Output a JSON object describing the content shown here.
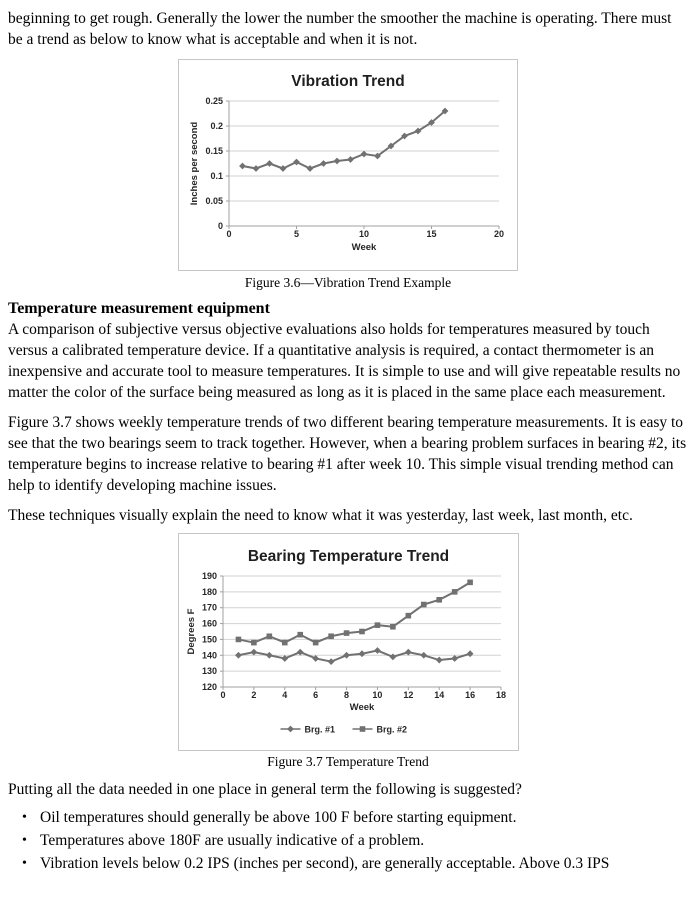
{
  "page": {
    "intro_paragraph": "beginning to get rough. Generally the lower the number the smoother the machine is operating. There must be a trend as below to know what is acceptable and when it is not.",
    "figure1_caption": "Figure 3.6—Vibration Trend Example",
    "section_heading": "Temperature measurement equipment",
    "para_temperature": "A comparison of subjective versus objective evaluations also holds for temperatures measured by touch versus a calibrated temperature device. If a quantitative analysis is required, a contact thermometer is an inexpensive and accurate tool to measure temperatures. It is simple to use and will give repeatable results no matter the color of the surface being measured as long as it is placed in the same place each measurement.",
    "para_figure37": "Figure 3.7 shows weekly temperature trends of two different bearing temperature measurements. It is easy to see that the two bearings seem to track together. However, when a bearing problem surfaces in bearing #2, its temperature begins to increase relative to bearing #1 after week 10. This simple visual trending method can help to identify developing machine issues.",
    "para_techniques": "These techniques visually explain the need to know what it was yesterday, last week, last month, etc.",
    "figure2_caption": "Figure 3.7 Temperature Trend",
    "para_suggested": "Putting all the data needed in one place in general term the following is suggested?",
    "bullets": [
      "Oil temperatures should generally be above 100 F before starting equipment.",
      "Temperatures above 180F are usually indicative of a problem.",
      "Vibration levels below 0.2 IPS (inches per second), are generally acceptable. Above 0.3 IPS"
    ]
  },
  "chart_data": [
    {
      "type": "line",
      "title": "Vibration Trend",
      "xlabel": "Week",
      "ylabel": "Inches per second",
      "xlim": [
        0,
        20
      ],
      "ylim": [
        0,
        0.25
      ],
      "xticks": [
        0,
        5,
        10,
        15,
        20
      ],
      "yticks": [
        0,
        0.05,
        0.1,
        0.15,
        0.2,
        0.25
      ],
      "ytick_labels": [
        "0",
        "0.05",
        "0.1",
        "0.15",
        "0.2",
        "0.25"
      ],
      "grid": true,
      "legend": false,
      "x": [
        1,
        2,
        3,
        4,
        5,
        6,
        7,
        8,
        9,
        10,
        11,
        12,
        13,
        14,
        15,
        16
      ],
      "series": [
        {
          "name": "",
          "marker": "diamond",
          "values": [
            0.12,
            0.115,
            0.125,
            0.115,
            0.128,
            0.115,
            0.125,
            0.13,
            0.133,
            0.144,
            0.14,
            0.16,
            0.18,
            0.19,
            0.207,
            0.23
          ]
        }
      ],
      "colors": {
        "series": "#717171",
        "grid": "#d2d2d2",
        "axis": "#a0a0a0",
        "text": "#262626",
        "title": "#1f1f1f"
      }
    },
    {
      "type": "line",
      "title": "Bearing Temperature Trend",
      "xlabel": "Week",
      "ylabel": "Degrees F",
      "xlim": [
        0,
        18
      ],
      "ylim": [
        120,
        190
      ],
      "xticks": [
        0,
        2,
        4,
        6,
        8,
        10,
        12,
        14,
        16,
        18
      ],
      "yticks": [
        120,
        130,
        140,
        150,
        160,
        170,
        180,
        190
      ],
      "ytick_labels": [
        "120",
        "130",
        "140",
        "150",
        "160",
        "170",
        "180",
        "190"
      ],
      "grid": true,
      "legend": true,
      "legend_position": "bottom",
      "x": [
        1,
        2,
        3,
        4,
        5,
        6,
        7,
        8,
        9,
        10,
        11,
        12,
        13,
        14,
        15,
        16
      ],
      "series": [
        {
          "name": "Brg. #1",
          "marker": "diamond",
          "values": [
            140,
            142,
            140,
            138,
            142,
            138,
            136,
            140,
            141,
            143,
            139,
            142,
            140,
            137,
            138,
            141
          ]
        },
        {
          "name": "Brg. #2",
          "marker": "square",
          "values": [
            150,
            148,
            152,
            148,
            153,
            148,
            152,
            154,
            155,
            159,
            158,
            165,
            172,
            175,
            180,
            186
          ]
        }
      ],
      "colors": {
        "series": "#717171",
        "grid": "#d2d2d2",
        "axis": "#a0a0a0",
        "text": "#262626",
        "title": "#1f1f1f"
      }
    }
  ]
}
